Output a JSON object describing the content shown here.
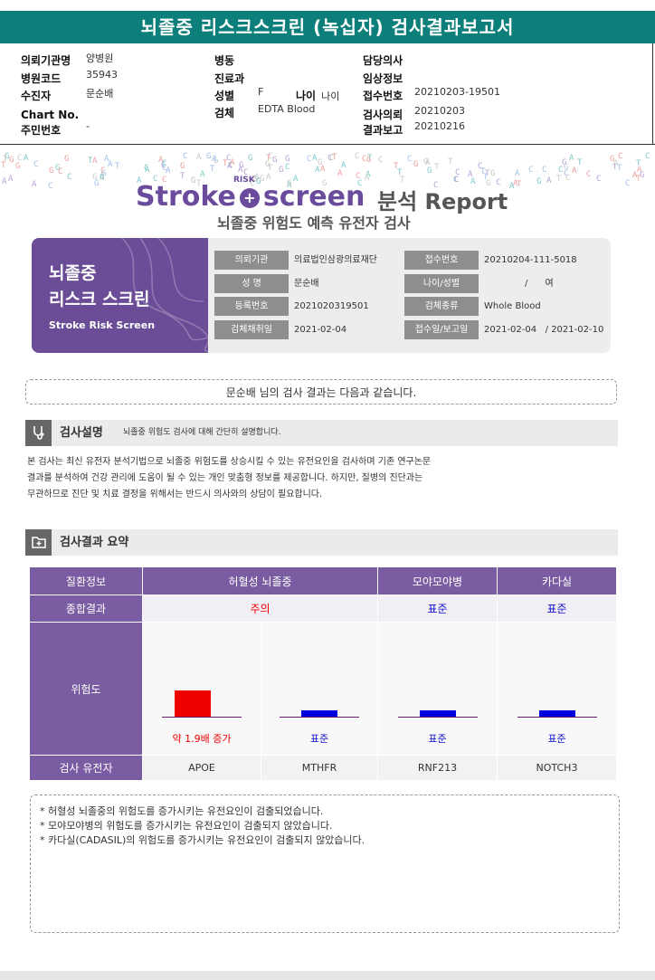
{
  "title": "뇌졸중 리스크스크린 (녹십자) 검사결과보고서",
  "header": {
    "col1": [
      {
        "label": "의뢰기관명",
        "value": "양병원"
      },
      {
        "label": "병원코드",
        "value": "35943"
      },
      {
        "label": "수진자",
        "value": "문순배"
      },
      {
        "label": "Chart No.",
        "value": ""
      },
      {
        "label": "주민번호",
        "value": "-"
      }
    ],
    "col2": [
      {
        "label": "병동",
        "value": ""
      },
      {
        "label": "진료과",
        "value": ""
      },
      {
        "label": "성별",
        "value": "F"
      },
      {
        "label": "검체",
        "value": "EDTA Blood"
      }
    ],
    "age_label": "나이",
    "age_value": "나이",
    "col3": [
      {
        "label": "담당의사",
        "value": ""
      },
      {
        "label": "임상정보",
        "value": ""
      },
      {
        "label": "접수번호",
        "value": "20210203-19501"
      },
      {
        "label": "검사의뢰",
        "value": "20210203"
      },
      {
        "label": "결과보고",
        "value": "20210216"
      }
    ]
  },
  "logo": {
    "word1": "Stroke",
    "risk": "RISK",
    "word2": "screen",
    "report": "분석 Report"
  },
  "subtitle": "뇌졸중 위험도 예측 유전자 검사",
  "brand_card": {
    "line1": "뇌졸중",
    "line2": "리스크 스크린",
    "english": "Stroke Risk Screen"
  },
  "info": {
    "institution_label": "의뢰기관",
    "institution": "의료법인삼광의료재단",
    "reception_label": "접수번호",
    "reception": "20210204-111-5018",
    "name_label": "성 명",
    "name": "문순배",
    "agesex_label": "나이/성별",
    "agesex": "/      여",
    "regno_label": "등록번호",
    "regno": "2021020319501",
    "specimen_label": "검체종류",
    "specimen": "Whole Blood",
    "collect_label": "검체채취일",
    "collect": "2021-02-04",
    "dates_label": "접수일/보고일",
    "dates": "2021-02-04   / 2021-02-10"
  },
  "greeting": "문순배 님의 검사 결과는 다음과 같습니다.",
  "section1": {
    "title": "검사설명",
    "subtitle": "뇌졸중 위험도 검사에 대해 간단히 설명합니다."
  },
  "description": [
    "본 검사는 최신 유전자 분석기법으로 뇌졸중 위험도를 상승시킬 수 있는 유전요인을 검사하며 기존 연구논문",
    "결과를 분석하여 건강  관리에 도움이 될 수 있는 개인 맞춤형 정보를 제공합니다. 하지만, 질병의 진단과는",
    "무관하므로 진단 및 치료 결정을 위해서는 반드시 의사와의 상담이 필요합니다."
  ],
  "section2": {
    "title": "검사결과 요약"
  },
  "table": {
    "row_disease": "질환정보",
    "row_overall": "종합결과",
    "row_risk": "위험도",
    "row_gene": "검사 유전자",
    "diseases": [
      "허혈성 뇌졸중",
      "모야모야병",
      "카다실"
    ],
    "overall": [
      "주의",
      "표준",
      "표준"
    ],
    "genes": [
      {
        "gene": "APOE",
        "risk": 1.9,
        "caption": "약 1.9배 증가",
        "level": "increased"
      },
      {
        "gene": "MTHFR",
        "risk": 1.0,
        "caption": "표준",
        "level": "standard"
      },
      {
        "gene": "RNF213",
        "risk": 1.0,
        "caption": "표준",
        "level": "standard"
      },
      {
        "gene": "NOTCH3",
        "risk": 1.0,
        "caption": "표준",
        "level": "standard"
      }
    ],
    "colors": {
      "increased": "#ee0000",
      "standard": "#0000dd"
    }
  },
  "notes": [
    "* 허혈성 뇌졸중의 위험도를 증가시키는 유전요인이 검출되었습니다.",
    "* 모야모야병의 위험도를 증가시키는 유전요인이 검출되지 않았습니다.",
    "* 카다실(CADASIL)의 위험도를 증가시키는 유전요인이 검출되지 않았습니다."
  ]
}
